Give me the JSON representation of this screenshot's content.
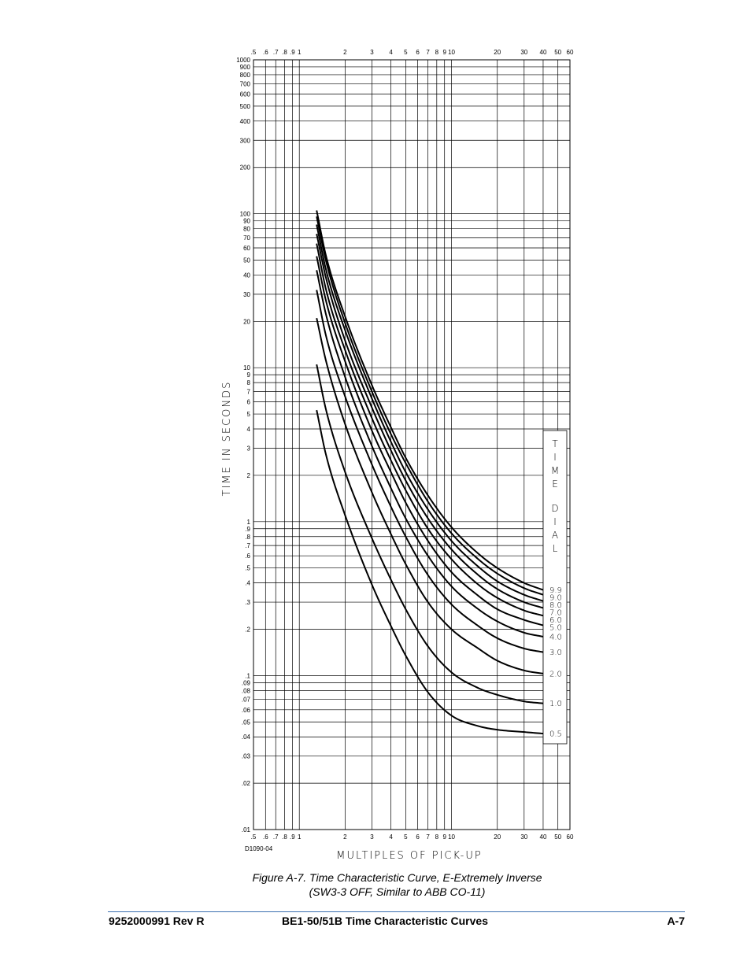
{
  "chart_data": {
    "type": "line",
    "x_scale": "log",
    "y_scale": "log",
    "xlabel": "MULTIPLES OF PICK-UP",
    "ylabel": "TIME IN SECONDS",
    "xlim": [
      0.5,
      60
    ],
    "ylim": [
      0.01,
      1000
    ],
    "grid": true,
    "x_tick_labels": [
      {
        "v": 0.5,
        "t": ".5"
      },
      {
        "v": 0.6,
        "t": ".6"
      },
      {
        "v": 0.7,
        "t": ".7"
      },
      {
        "v": 0.8,
        "t": ".8"
      },
      {
        "v": 0.9,
        "t": ".9"
      },
      {
        "v": 1,
        "t": "1"
      },
      {
        "v": 2,
        "t": "2"
      },
      {
        "v": 3,
        "t": "3"
      },
      {
        "v": 4,
        "t": "4"
      },
      {
        "v": 5,
        "t": "5"
      },
      {
        "v": 6,
        "t": "6"
      },
      {
        "v": 7,
        "t": "7"
      },
      {
        "v": 8,
        "t": "8"
      },
      {
        "v": 9,
        "t": "9"
      },
      {
        "v": 10,
        "t": "10"
      },
      {
        "v": 20,
        "t": "20"
      },
      {
        "v": 30,
        "t": "30"
      },
      {
        "v": 40,
        "t": "40"
      },
      {
        "v": 50,
        "t": "50"
      },
      {
        "v": 60,
        "t": "60"
      }
    ],
    "y_tick_labels": [
      {
        "v": 1000,
        "t": "1000"
      },
      {
        "v": 900,
        "t": "900"
      },
      {
        "v": 800,
        "t": "800"
      },
      {
        "v": 700,
        "t": "700"
      },
      {
        "v": 600,
        "t": "600"
      },
      {
        "v": 500,
        "t": "500"
      },
      {
        "v": 400,
        "t": "400"
      },
      {
        "v": 300,
        "t": "300"
      },
      {
        "v": 200,
        "t": "200"
      },
      {
        "v": 100,
        "t": "100"
      },
      {
        "v": 90,
        "t": "90"
      },
      {
        "v": 80,
        "t": "80"
      },
      {
        "v": 70,
        "t": "70"
      },
      {
        "v": 60,
        "t": "60"
      },
      {
        "v": 50,
        "t": "50"
      },
      {
        "v": 40,
        "t": "40"
      },
      {
        "v": 30,
        "t": "30"
      },
      {
        "v": 20,
        "t": "20"
      },
      {
        "v": 10,
        "t": "10"
      },
      {
        "v": 9,
        "t": "9"
      },
      {
        "v": 8,
        "t": "8"
      },
      {
        "v": 7,
        "t": "7"
      },
      {
        "v": 6,
        "t": "6"
      },
      {
        "v": 5,
        "t": "5"
      },
      {
        "v": 4,
        "t": "4"
      },
      {
        "v": 3,
        "t": "3"
      },
      {
        "v": 2,
        "t": "2"
      },
      {
        "v": 1,
        "t": "1"
      },
      {
        "v": 0.9,
        "t": ".9"
      },
      {
        "v": 0.8,
        "t": ".8"
      },
      {
        "v": 0.7,
        "t": ".7"
      },
      {
        "v": 0.6,
        "t": ".6"
      },
      {
        "v": 0.5,
        "t": ".5"
      },
      {
        "v": 0.4,
        "t": ".4"
      },
      {
        "v": 0.3,
        "t": ".3"
      },
      {
        "v": 0.2,
        "t": ".2"
      },
      {
        "v": 0.1,
        "t": ".1"
      },
      {
        "v": 0.09,
        "t": ".09"
      },
      {
        "v": 0.08,
        "t": ".08"
      },
      {
        "v": 0.07,
        "t": ".07"
      },
      {
        "v": 0.06,
        "t": ".06"
      },
      {
        "v": 0.05,
        "t": ".05"
      },
      {
        "v": 0.04,
        "t": ".04"
      },
      {
        "v": 0.03,
        "t": ".03"
      },
      {
        "v": 0.02,
        "t": ".02"
      },
      {
        "v": 0.01,
        "t": ".01"
      }
    ],
    "legend_title": "TIME DIAL",
    "legend_placement": "right",
    "x": [
      1.3,
      1.5,
      2,
      3,
      4,
      5,
      7,
      10,
      15,
      20,
      30,
      40
    ],
    "series": [
      {
        "name": "0.5",
        "values": [
          5.3,
          2.7,
          1.1,
          0.39,
          0.21,
          0.135,
          0.078,
          0.055,
          0.047,
          0.0445,
          0.043,
          0.042
        ]
      },
      {
        "name": "1.0",
        "values": [
          10.5,
          5.3,
          2.1,
          0.78,
          0.42,
          0.27,
          0.155,
          0.105,
          0.083,
          0.075,
          0.068,
          0.066
        ]
      },
      {
        "name": "2.0",
        "values": [
          21,
          11,
          4.3,
          1.55,
          0.83,
          0.53,
          0.3,
          0.2,
          0.15,
          0.125,
          0.108,
          0.103
        ]
      },
      {
        "name": "3.0",
        "values": [
          32,
          16,
          6.5,
          2.35,
          1.25,
          0.8,
          0.45,
          0.29,
          0.21,
          0.175,
          0.15,
          0.142
        ]
      },
      {
        "name": "4.0",
        "values": [
          43,
          22,
          8.7,
          3.1,
          1.65,
          1.05,
          0.6,
          0.38,
          0.27,
          0.225,
          0.19,
          0.179
        ]
      },
      {
        "name": "5.0",
        "values": [
          53,
          27,
          11,
          3.9,
          2.1,
          1.33,
          0.75,
          0.47,
          0.33,
          0.27,
          0.23,
          0.212
        ]
      },
      {
        "name": "6.0",
        "values": [
          64,
          32,
          13,
          4.7,
          2.5,
          1.6,
          0.9,
          0.57,
          0.39,
          0.32,
          0.265,
          0.245
        ]
      },
      {
        "name": "7.0",
        "values": [
          74,
          38,
          15,
          5.5,
          2.9,
          1.85,
          1.05,
          0.66,
          0.45,
          0.365,
          0.3,
          0.275
        ]
      },
      {
        "name": "8.0",
        "values": [
          85,
          43,
          17.5,
          6.3,
          3.3,
          2.1,
          1.2,
          0.75,
          0.51,
          0.41,
          0.335,
          0.305
        ]
      },
      {
        "name": "9.0",
        "values": [
          96,
          49,
          19.5,
          7,
          3.7,
          2.4,
          1.35,
          0.84,
          0.57,
          0.46,
          0.37,
          0.335
        ]
      },
      {
        "name": "9.9",
        "values": [
          105,
          53,
          21.5,
          7.7,
          4.1,
          2.6,
          1.48,
          0.92,
          0.62,
          0.5,
          0.4,
          0.36
        ]
      }
    ],
    "drawing_number": "D1090-04"
  },
  "caption": {
    "line1": "Figure A-7. Time Characteristic Curve, E-Extremely Inverse",
    "line2": "(SW3-3 OFF, Similar to ABB CO-11)"
  },
  "footer": {
    "doc_number": "9252000991 Rev R",
    "title": "BE1-50/51B Time Characteristic Curves",
    "page": "A-7",
    "rule_color": "#3b6fb0"
  }
}
